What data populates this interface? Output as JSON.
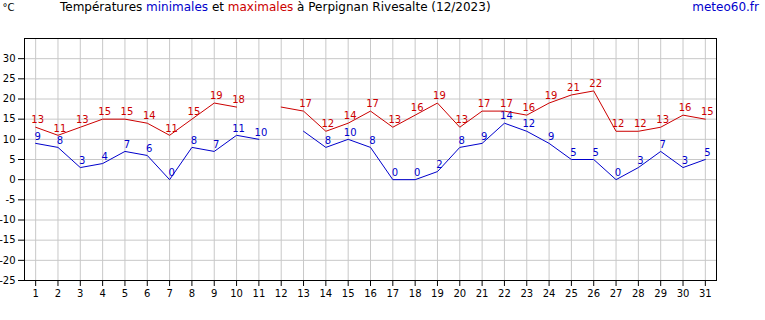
{
  "chart_data": {
    "type": "line",
    "title": "Températures minimales et maximales à Perpignan Rivesalte (12/2023)",
    "annotation": "meteo60.fr",
    "y_label": "°C",
    "x": [
      1,
      2,
      3,
      4,
      5,
      6,
      7,
      8,
      9,
      10,
      11,
      12,
      13,
      14,
      15,
      16,
      17,
      18,
      19,
      20,
      21,
      22,
      23,
      24,
      25,
      26,
      27,
      28,
      29,
      30,
      31
    ],
    "series": [
      {
        "name": "minimales",
        "color": "#0000cc",
        "values": [
          9,
          8,
          3,
          4,
          7,
          6,
          0,
          8,
          7,
          11,
          10,
          null,
          12,
          8,
          10,
          8,
          0,
          0,
          2,
          8,
          9,
          14,
          12,
          9,
          5,
          5,
          0,
          3,
          7,
          3,
          5
        ],
        "value_labels": [
          "9",
          "8",
          "3",
          "4",
          "7",
          "6",
          "0",
          "8",
          "7",
          "11",
          "10",
          null,
          null,
          "8",
          "10",
          "8",
          "0",
          "0",
          "2",
          "8",
          "9",
          "14",
          "12",
          "9",
          "5",
          "5",
          "0",
          "3",
          "7",
          "3",
          "5"
        ]
      },
      {
        "name": "maximales",
        "color": "#cc0000",
        "values": [
          13,
          11,
          13,
          15,
          15,
          14,
          11,
          15,
          19,
          18,
          null,
          18,
          17,
          12,
          14,
          17,
          13,
          16,
          19,
          13,
          17,
          17,
          16,
          19,
          21,
          22,
          12,
          12,
          13,
          16,
          15
        ],
        "value_labels": [
          "13",
          "11",
          "13",
          "15",
          "15",
          "14",
          "11",
          "15",
          "19",
          "18",
          null,
          null,
          "17",
          "12",
          "14",
          "17",
          "13",
          "16",
          "19",
          "13",
          "17",
          "17",
          "16",
          "19",
          "21",
          "22",
          "12",
          "12",
          "13",
          "16",
          "15"
        ]
      }
    ],
    "xlim": [
      0.5,
      31.5
    ],
    "xticks": [
      1,
      2,
      3,
      4,
      5,
      6,
      7,
      8,
      9,
      10,
      11,
      12,
      13,
      14,
      15,
      16,
      17,
      18,
      19,
      20,
      21,
      22,
      23,
      24,
      25,
      26,
      27,
      28,
      29,
      30,
      31
    ],
    "ylim": [
      -25,
      35
    ],
    "yticks": [
      -25,
      -20,
      -15,
      -10,
      -5,
      0,
      5,
      10,
      15,
      20,
      25,
      30
    ],
    "grid": true,
    "data_labels": true
  }
}
